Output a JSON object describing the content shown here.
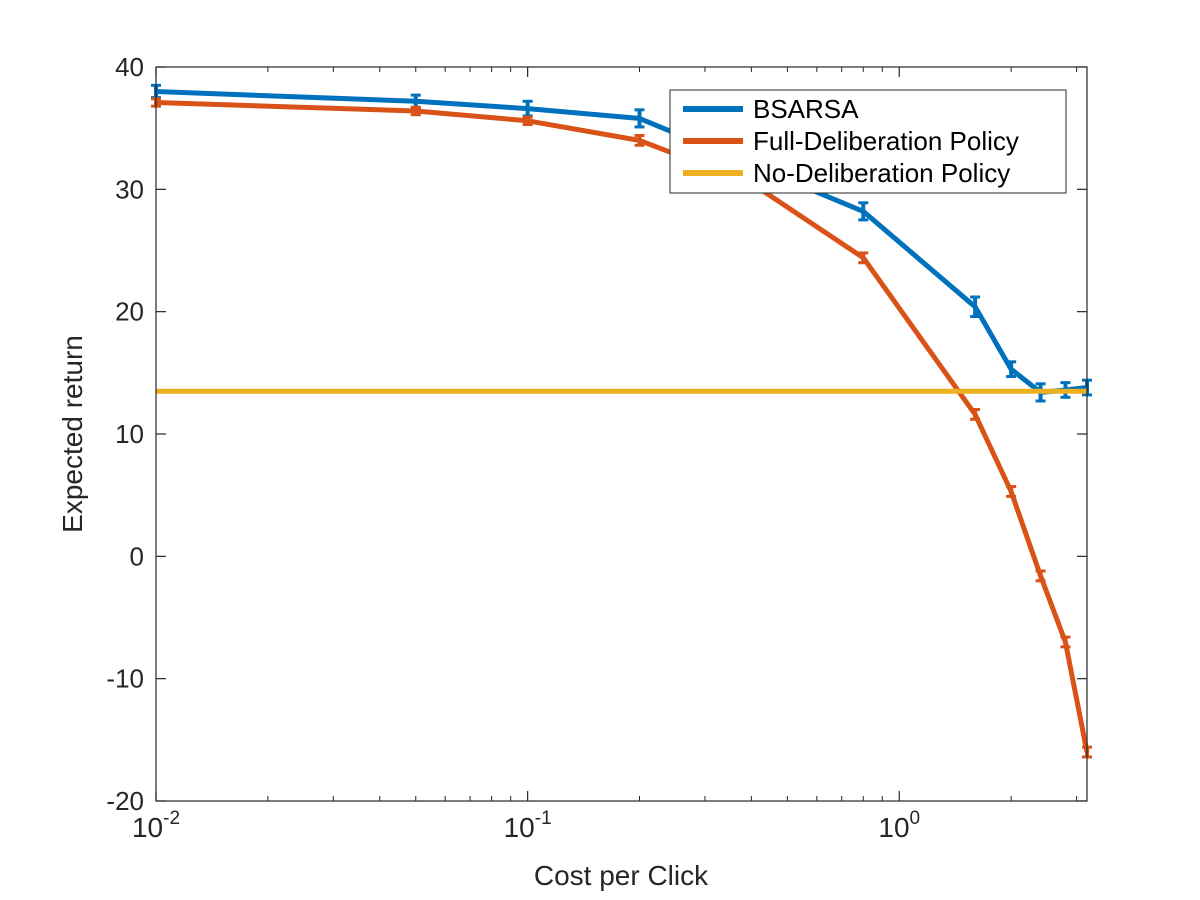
{
  "chart_data": {
    "type": "line",
    "title": "",
    "xlabel": "Cost per Click",
    "ylabel": "Expected return",
    "x_scale": "log",
    "xlim": [
      0.01,
      3.2
    ],
    "ylim": [
      -20,
      40
    ],
    "x_ticks": [
      {
        "value": 0.01,
        "base": "10",
        "exp": "-2"
      },
      {
        "value": 0.1,
        "base": "10",
        "exp": "-1"
      },
      {
        "value": 1,
        "base": "10",
        "exp": "0"
      }
    ],
    "y_ticks": [
      {
        "value": -20,
        "label": "-20"
      },
      {
        "value": -10,
        "label": "-10"
      },
      {
        "value": 0,
        "label": "0"
      },
      {
        "value": 10,
        "label": "10"
      },
      {
        "value": 20,
        "label": "20"
      },
      {
        "value": 30,
        "label": "30"
      },
      {
        "value": 40,
        "label": "40"
      }
    ],
    "grid": false,
    "legend_position": "top-right",
    "series": [
      {
        "name": "BSARSA",
        "color": "#0072BD",
        "error_bars": true,
        "points": [
          {
            "x": 0.01,
            "y": 38.0,
            "err": 0.5
          },
          {
            "x": 0.05,
            "y": 37.2,
            "err": 0.5
          },
          {
            "x": 0.1,
            "y": 36.6,
            "err": 0.6
          },
          {
            "x": 0.2,
            "y": 35.8,
            "err": 0.7
          },
          {
            "x": 0.8,
            "y": 28.2,
            "err": 0.7
          },
          {
            "x": 1.6,
            "y": 20.4,
            "err": 0.8
          },
          {
            "x": 2.0,
            "y": 15.3,
            "err": 0.6
          },
          {
            "x": 2.4,
            "y": 13.4,
            "err": 0.7
          },
          {
            "x": 2.8,
            "y": 13.6,
            "err": 0.6
          },
          {
            "x": 3.2,
            "y": 13.8,
            "err": 0.6
          }
        ]
      },
      {
        "name": "Full-Deliberation Policy",
        "color": "#D95319",
        "error_bars": true,
        "points": [
          {
            "x": 0.01,
            "y": 37.1,
            "err": 0.3
          },
          {
            "x": 0.05,
            "y": 36.4,
            "err": 0.3
          },
          {
            "x": 0.1,
            "y": 35.6,
            "err": 0.3
          },
          {
            "x": 0.2,
            "y": 34.0,
            "err": 0.4
          },
          {
            "x": 0.4,
            "y": 30.5,
            "err": 0.4
          },
          {
            "x": 0.8,
            "y": 24.4,
            "err": 0.4
          },
          {
            "x": 1.6,
            "y": 11.6,
            "err": 0.4
          },
          {
            "x": 2.0,
            "y": 5.3,
            "err": 0.4
          },
          {
            "x": 2.4,
            "y": -1.6,
            "err": 0.4
          },
          {
            "x": 2.8,
            "y": -7.0,
            "err": 0.4
          },
          {
            "x": 3.2,
            "y": -16.0,
            "err": 0.4
          }
        ]
      },
      {
        "name": "No-Deliberation Policy",
        "color": "#EDB120",
        "error_bars": false,
        "points": [
          {
            "x": 0.01,
            "y": 13.5
          },
          {
            "x": 3.2,
            "y": 13.5
          }
        ]
      }
    ]
  }
}
